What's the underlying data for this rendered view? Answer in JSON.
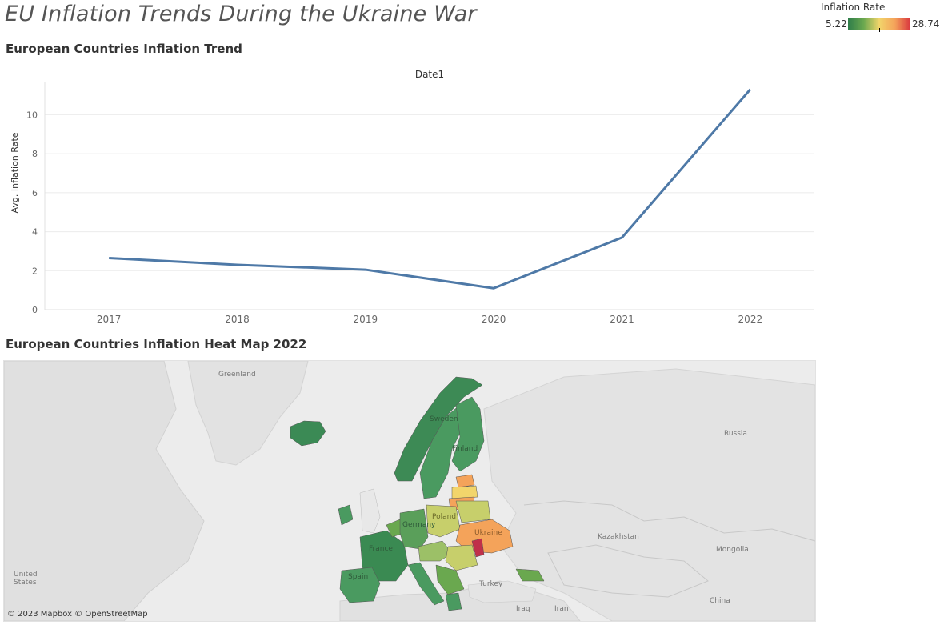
{
  "dashboard": {
    "title": "EU Inflation Trends During the Ukraine War"
  },
  "legend": {
    "title": "Inflation Rate",
    "min": "5.22",
    "max": "28.74",
    "colors": [
      "#2e7d4a",
      "#6aa84f",
      "#f2d56b",
      "#f4a35a",
      "#d9363e"
    ]
  },
  "trend": {
    "title": "European Countries Inflation Trend"
  },
  "heatmap": {
    "title": "European Countries Inflation Heat Map 2022",
    "attribution": "© 2023 Mapbox © OpenStreetMap",
    "labels": {
      "greenland": "Greenland",
      "russia": "Russia",
      "kazakhstan": "Kazakhstan",
      "mongolia": "Mongolia",
      "united_states": "United States",
      "turkey": "Turkey",
      "iraq": "Iraq",
      "iran": "Iran",
      "china": "China",
      "france": "France",
      "spain": "Spain",
      "ukraine": "Ukraine",
      "poland": "Poland",
      "finland": "Finland",
      "sweden": "Sweden",
      "germany": "Germany"
    }
  },
  "chart_data": {
    "type": "line",
    "title": "Date1",
    "xlabel": "",
    "ylabel": "Avg. Inflation Rate",
    "categories": [
      "2017",
      "2018",
      "2019",
      "2020",
      "2021",
      "2022"
    ],
    "series": [
      {
        "values": [
          2.65,
          2.3,
          2.05,
          1.1,
          3.7,
          11.3
        ]
      }
    ],
    "ylim": [
      0,
      11.7
    ],
    "yticks": [
      0,
      2,
      4,
      6,
      8,
      10
    ],
    "grid": true,
    "color": "#4e79a7"
  }
}
